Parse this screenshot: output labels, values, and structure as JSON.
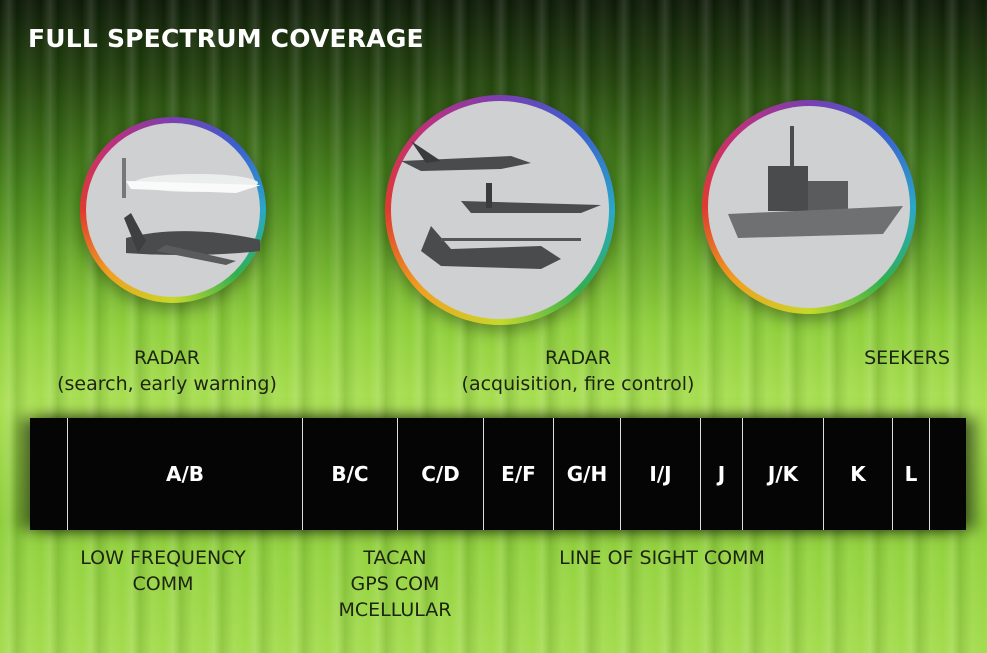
{
  "title": "FULL SPECTRUM COVERAGE",
  "upper_labels": [
    [
      "RADAR",
      "(search, early warning)"
    ],
    [
      "RADAR",
      "(acquisition, fire control)"
    ],
    [
      "SEEKERS"
    ]
  ],
  "bands": [
    "A/B",
    "B/C",
    "C/D",
    "E/F",
    "G/H",
    "I/J",
    "J",
    "J/K",
    "K",
    "L"
  ],
  "lower_labels": [
    [
      "LOW FREQUENCY",
      "COMM"
    ],
    [
      "TACAN",
      "GPS COM",
      "MCELLULAR"
    ],
    [
      "LINE OF SIGHT COMM"
    ]
  ]
}
